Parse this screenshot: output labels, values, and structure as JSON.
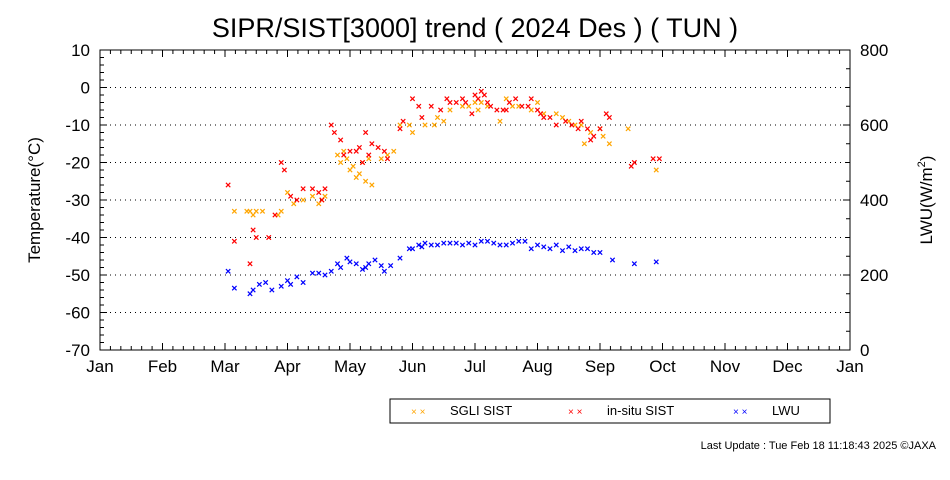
{
  "footer": "Last Update : Tue Feb 18 11:18:43 2025  ©JAXA",
  "chart_data": {
    "type": "scatter",
    "title": "SIPR/SIST[3000] trend ( 2024 Des ) ( TUN )",
    "xlabel": "",
    "ylabel": "Temperature(°C)",
    "y2label": "LWU(W/m",
    "y2label_sup": "2",
    "y2label_close": ")",
    "ylim": [
      -70,
      10
    ],
    "y2lim": [
      0,
      800
    ],
    "yticks": [
      "10",
      "0",
      "-10",
      "-20",
      "-30",
      "-40",
      "-50",
      "-60",
      "-70"
    ],
    "y2ticks": [
      "800",
      "600",
      "400",
      "200",
      "0"
    ],
    "x_categories": [
      "Jan",
      "Feb",
      "Mar",
      "Apr",
      "May",
      "Jun",
      "Jul",
      "Aug",
      "Sep",
      "Oct",
      "Nov",
      "Dec",
      "Jan"
    ],
    "grid": "horizontal dotted",
    "legend_position": "bottom-right",
    "marker": "×",
    "series": [
      {
        "name": "SGLI SIST",
        "axis": "left",
        "color": "#ffa500",
        "x": [
          2.15,
          2.35,
          2.4,
          2.45,
          2.5,
          2.6,
          2.85,
          2.9,
          3.0,
          3.1,
          3.25,
          3.4,
          3.5,
          3.55,
          3.6,
          3.8,
          3.85,
          3.9,
          3.95,
          4.0,
          4.05,
          4.1,
          4.15,
          4.2,
          4.25,
          4.3,
          4.35,
          4.5,
          4.6,
          4.7,
          4.8,
          4.95,
          5.0,
          5.2,
          5.35,
          5.4,
          5.5,
          5.6,
          5.8,
          5.9,
          6.0,
          6.05,
          6.1,
          6.2,
          6.4,
          6.5,
          6.6,
          6.7,
          6.9,
          7.0,
          7.1,
          7.3,
          7.4,
          7.5,
          7.6,
          7.7,
          7.75,
          7.85,
          8.0,
          8.05,
          8.15,
          8.45,
          8.9
        ],
        "y": [
          -33,
          -33,
          -33,
          -34,
          -33,
          -33,
          -34,
          -33,
          -28,
          -31,
          -30,
          -29,
          -31,
          -30,
          -29,
          -18,
          -20,
          -17,
          -19,
          -22,
          -21,
          -24,
          -23,
          -20,
          -25,
          -19,
          -26,
          -19,
          -18,
          -17,
          -10,
          -10,
          -12,
          -10,
          -10,
          -8,
          -9,
          -6,
          -5,
          -5,
          -4,
          -6,
          -4,
          -5,
          -9,
          -3,
          -5,
          -5,
          -6,
          -4,
          -7,
          -7,
          -8,
          -9,
          -10,
          -10,
          -15,
          -12,
          -11,
          -13,
          -15,
          -11,
          -22
        ]
      },
      {
        "name": "in-situ SIST",
        "axis": "left",
        "color": "#ff0000",
        "x": [
          2.05,
          2.15,
          2.4,
          2.45,
          2.5,
          2.7,
          2.8,
          2.9,
          2.95,
          3.05,
          3.15,
          3.25,
          3.4,
          3.5,
          3.55,
          3.6,
          3.7,
          3.75,
          3.85,
          3.9,
          4.0,
          4.1,
          4.15,
          4.2,
          4.25,
          4.3,
          4.35,
          4.45,
          4.55,
          4.6,
          4.8,
          4.85,
          5.0,
          5.1,
          5.15,
          5.3,
          5.45,
          5.55,
          5.6,
          5.7,
          5.8,
          5.85,
          5.95,
          6.0,
          6.05,
          6.1,
          6.15,
          6.2,
          6.25,
          6.35,
          6.45,
          6.5,
          6.55,
          6.65,
          6.75,
          6.85,
          6.9,
          7.0,
          7.05,
          7.1,
          7.2,
          7.3,
          7.45,
          7.55,
          7.65,
          7.7,
          7.8,
          7.85,
          7.9,
          8.0,
          8.1,
          8.15,
          8.5,
          8.55,
          8.85,
          8.95
        ],
        "y": [
          -26,
          -41,
          -47,
          -38,
          -40,
          -40,
          -34,
          -20,
          -22,
          -29,
          -30,
          -27,
          -27,
          -28,
          -30,
          -27,
          -10,
          -12,
          -14,
          -18,
          -17,
          -17,
          -16,
          -20,
          -12,
          -18,
          -15,
          -16,
          -17,
          -19,
          -11,
          -9,
          -3,
          -5,
          -8,
          -5,
          -6,
          -3,
          -4,
          -4,
          -3,
          -4,
          -7,
          -2,
          -3,
          -1,
          -2,
          -4,
          -5,
          -6,
          -6,
          -6,
          -4,
          -3,
          -5,
          -5,
          -3,
          -6,
          -7,
          -8,
          -8,
          -10,
          -9,
          -10,
          -11,
          -9,
          -11,
          -14,
          -13,
          -11,
          -7,
          -8,
          -21,
          -20,
          -19,
          -19
        ]
      },
      {
        "name": "LWU",
        "axis": "right",
        "color": "#0000ff",
        "x": [
          2.05,
          2.15,
          2.4,
          2.45,
          2.55,
          2.65,
          2.75,
          2.9,
          3.0,
          3.05,
          3.15,
          3.25,
          3.4,
          3.5,
          3.6,
          3.7,
          3.8,
          3.85,
          3.95,
          4.0,
          4.1,
          4.2,
          4.25,
          4.3,
          4.4,
          4.5,
          4.55,
          4.65,
          4.8,
          4.95,
          5.0,
          5.1,
          5.15,
          5.2,
          5.3,
          5.4,
          5.5,
          5.6,
          5.7,
          5.8,
          5.9,
          6.0,
          6.1,
          6.2,
          6.3,
          6.4,
          6.5,
          6.6,
          6.7,
          6.8,
          6.9,
          7.0,
          7.1,
          7.2,
          7.3,
          7.4,
          7.5,
          7.6,
          7.7,
          7.8,
          7.9,
          8.0,
          8.2,
          8.55,
          8.9
        ],
        "y": [
          210,
          165,
          150,
          160,
          175,
          180,
          160,
          170,
          185,
          175,
          195,
          180,
          205,
          205,
          200,
          210,
          230,
          220,
          245,
          235,
          230,
          215,
          220,
          230,
          240,
          225,
          210,
          225,
          245,
          270,
          270,
          280,
          275,
          285,
          280,
          280,
          285,
          285,
          285,
          280,
          285,
          280,
          290,
          290,
          285,
          280,
          280,
          285,
          290,
          290,
          270,
          280,
          275,
          270,
          280,
          265,
          275,
          265,
          270,
          270,
          260,
          260,
          240,
          230,
          235
        ]
      }
    ]
  }
}
